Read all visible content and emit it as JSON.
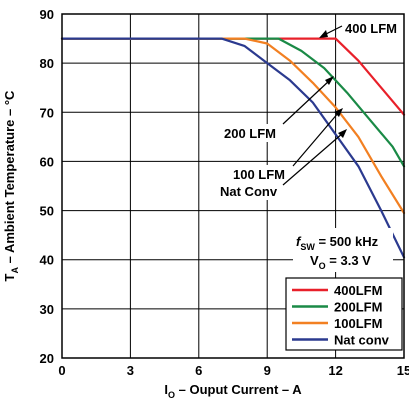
{
  "chart_data": {
    "type": "line",
    "title": "",
    "xlabel": "I_O – Ouput Current – A",
    "ylabel": "T_A – Ambient Temperature – °C",
    "xlim": [
      0,
      15
    ],
    "ylim": [
      20,
      90
    ],
    "x_ticks": [
      0,
      3,
      6,
      9,
      12,
      15
    ],
    "y_ticks": [
      20,
      30,
      40,
      50,
      60,
      70,
      80,
      90
    ],
    "grid": true,
    "legend_position": "bottom-right",
    "series": [
      {
        "name": "400LFM",
        "color": "#e8202a",
        "points": [
          [
            0,
            85
          ],
          [
            12,
            85
          ],
          [
            13,
            80.5
          ],
          [
            14,
            75
          ],
          [
            15,
            69.5
          ]
        ]
      },
      {
        "name": "200LFM",
        "color": "#1a8a46",
        "points": [
          [
            0,
            85
          ],
          [
            9.5,
            85
          ],
          [
            10.5,
            82.5
          ],
          [
            11.5,
            79
          ],
          [
            12.5,
            74
          ],
          [
            13.5,
            68.5
          ],
          [
            14.5,
            63
          ],
          [
            15,
            59
          ]
        ]
      },
      {
        "name": "100LFM",
        "color": "#f28022",
        "points": [
          [
            0,
            85
          ],
          [
            8,
            85
          ],
          [
            9,
            84
          ],
          [
            10,
            80.5
          ],
          [
            11,
            76
          ],
          [
            12,
            71
          ],
          [
            13,
            65
          ],
          [
            14,
            57
          ],
          [
            15,
            49.5
          ]
        ]
      },
      {
        "name": "Nat conv",
        "color": "#2b3a8f",
        "points": [
          [
            0,
            85
          ],
          [
            7,
            85
          ],
          [
            8,
            83.5
          ],
          [
            9,
            80
          ],
          [
            10,
            76.5
          ],
          [
            11,
            72
          ],
          [
            12,
            65.5
          ],
          [
            13,
            59
          ],
          [
            14,
            50
          ],
          [
            15,
            40.5
          ]
        ]
      }
    ],
    "annotations": {
      "lfm400": "400 LFM",
      "lfm200": "200 LFM",
      "lfm100": "100 LFM",
      "natconv": "Nat Conv",
      "fsw_prefix": "f",
      "fsw_sub": "SW",
      "fsw_value": " = 500 kHz",
      "vo_prefix": "V",
      "vo_sub": "O",
      "vo_value": " = 3.3 V"
    },
    "axis_text": {
      "y_main": "T",
      "y_sub": "A",
      "y_rest": " – Ambient Temperature – °C",
      "x_main": "I",
      "x_sub": "O",
      "x_rest": " – Ouput Current  – A"
    }
  }
}
